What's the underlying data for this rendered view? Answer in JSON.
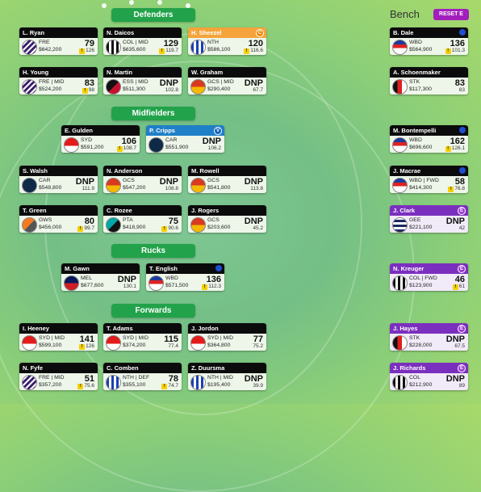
{
  "sections": {
    "defenders": "Defenders",
    "midfielders": "Midfielders",
    "rucks": "Rucks",
    "forwards": "Forwards"
  },
  "bench": {
    "title": "Bench",
    "reset_label": "RESET E"
  },
  "players": {
    "ryan": {
      "name": "L. Ryan",
      "club": "FRE",
      "price": "$642,200",
      "score": "79",
      "avg": "126",
      "flag": "!"
    },
    "daicos": {
      "name": "N. Daicos",
      "club": "COL | MID",
      "price": "$635,600",
      "score": "129",
      "avg": "119.7",
      "flag": "!"
    },
    "sheezel": {
      "name": "H. Sheezel",
      "club": "NTH",
      "price": "$586,100",
      "score": "120",
      "avg": "116.6",
      "flag": "!",
      "badge": "C"
    },
    "young": {
      "name": "H. Young",
      "club": "FRE | MID",
      "price": "$524,200",
      "score": "83",
      "avg": "98",
      "flag": "!"
    },
    "martin": {
      "name": "N. Martin",
      "club": "ESS | MID",
      "price": "$511,300",
      "score": "DNP",
      "avg": "102.8"
    },
    "graham": {
      "name": "W. Graham",
      "club": "GCS | MID",
      "price": "$290,400",
      "score": "DNP",
      "avg": "67.7"
    },
    "gulden": {
      "name": "E. Gulden",
      "club": "SYD",
      "price": "$591,200",
      "score": "106",
      "avg": "108.7",
      "flag": "!"
    },
    "cripps": {
      "name": "P. Cripps",
      "club": "CAR",
      "price": "$551,900",
      "score": "DNP",
      "avg": "106.2",
      "badge": "V"
    },
    "walsh": {
      "name": "S. Walsh",
      "club": "CAR",
      "price": "$548,800",
      "score": "DNP",
      "avg": "111.9"
    },
    "anderson": {
      "name": "N. Anderson",
      "club": "GCS",
      "price": "$547,200",
      "score": "DNP",
      "avg": "108.8"
    },
    "rowell": {
      "name": "M. Rowell",
      "club": "GCS",
      "price": "$541,800",
      "score": "DNP",
      "avg": "113.8"
    },
    "green": {
      "name": "T. Green",
      "club": "GWS",
      "price": "$456,000",
      "score": "80",
      "avg": "99.7",
      "flag": "!"
    },
    "rozee": {
      "name": "C. Rozee",
      "club": "PTA",
      "price": "$418,900",
      "score": "75",
      "avg": "90.6",
      "flag": "!"
    },
    "rogers": {
      "name": "J. Rogers",
      "club": "GCS",
      "price": "$203,600",
      "score": "DNP",
      "avg": "45.2"
    },
    "gawn": {
      "name": "M. Gawn",
      "club": "MEL",
      "price": "$677,600",
      "score": "DNP",
      "avg": "130.1"
    },
    "english": {
      "name": "T. English",
      "club": "WBD",
      "price": "$571,500",
      "score": "136",
      "avg": "112.3",
      "flag": "!"
    },
    "heeney": {
      "name": "I. Heeney",
      "club": "SYD | MID",
      "price": "$599,100",
      "score": "141",
      "avg": "126",
      "flag": "!"
    },
    "adams": {
      "name": "T. Adams",
      "club": "SYD | MID",
      "price": "$374,200",
      "score": "115",
      "avg": "77.4"
    },
    "jordon": {
      "name": "J. Jordon",
      "club": "SYD | MID",
      "price": "$364,800",
      "score": "77",
      "avg": "75.2"
    },
    "fyfe": {
      "name": "N. Fyfe",
      "club": "FRE | MID",
      "price": "$357,200",
      "score": "51",
      "avg": "75.6",
      "flag": "!"
    },
    "comben": {
      "name": "C. Comben",
      "club": "NTH | DEF",
      "price": "$355,100",
      "score": "78",
      "avg": "74.7",
      "flag": "!"
    },
    "duursma": {
      "name": "Z. Duursma",
      "club": "NTH | MID",
      "price": "$195,400",
      "score": "DNP",
      "avg": "39.9"
    },
    "dale": {
      "name": "B. Dale",
      "club": "WBD",
      "price": "$564,900",
      "score": "136",
      "avg": "101.3",
      "flag": "!"
    },
    "schoenmaker": {
      "name": "A. Schoenmaker",
      "club": "STK",
      "price": "$117,300",
      "score": "83",
      "avg": "83"
    },
    "bontempelli": {
      "name": "M. Bontempelli",
      "club": "WBD",
      "price": "$696,600",
      "score": "162",
      "avg": "126.1",
      "flag": "!"
    },
    "macrae": {
      "name": "J. Macrae",
      "club": "WBD | FWD",
      "price": "$414,300",
      "score": "58",
      "avg": "76.8",
      "flag": "!"
    },
    "clark": {
      "name": "J. Clark",
      "club": "GEE",
      "price": "$221,100",
      "score": "DNP",
      "avg": "42",
      "badge": "E"
    },
    "kreuger": {
      "name": "N. Kreuger",
      "club": "COL | FWD",
      "price": "$123,900",
      "score": "46",
      "avg": "61",
      "flag": "!",
      "badge": "E"
    },
    "hayes": {
      "name": "J. Hayes",
      "club": "STK",
      "price": "$228,000",
      "score": "DNP",
      "avg": "67.5",
      "badge": "E"
    },
    "richards": {
      "name": "J. Richards",
      "club": "COL",
      "price": "$212,900",
      "score": "DNP",
      "avg": "89",
      "badge": "E"
    }
  },
  "colors": {
    "pill": "#22a24a",
    "captain": "#f4a43a",
    "vice": "#1f7fc7",
    "emergency": "#7b2fbe",
    "reset": "#a21fbd"
  }
}
